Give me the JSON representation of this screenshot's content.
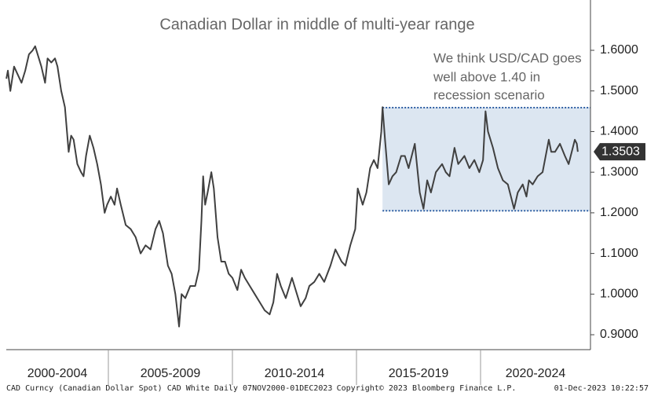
{
  "chart_data": {
    "type": "line",
    "title": "Canadian Dollar in middle of multi-year range",
    "annotation": [
      "We think USD/CAD goes",
      "well above 1.40 in",
      "recession scenario"
    ],
    "footer": {
      "left": "CAD Curncy (Canadian Dollar Spot) CAD White  Daily 07NOV2000-01DEC2023",
      "center": "Copyright© 2023 Bloomberg Finance L.P.",
      "right": "01-Dec-2023 10:22:57"
    },
    "x_periods": [
      {
        "label": "2000-2004",
        "start": 2000,
        "end": 2005
      },
      {
        "label": "2005-2009",
        "start": 2005,
        "end": 2010
      },
      {
        "label": "2010-2014",
        "start": 2010,
        "end": 2015
      },
      {
        "label": "2015-2019",
        "start": 2015,
        "end": 2020
      },
      {
        "label": "2020-2024",
        "start": 2020,
        "end": 2025
      }
    ],
    "xlim": [
      2000.886,
      2024.43
    ],
    "ylim": [
      0.8633,
      1.7238
    ],
    "yticks": [
      {
        "value": 0.9,
        "label": "0.9000"
      },
      {
        "value": 1.0,
        "label": "1.0000"
      },
      {
        "value": 1.1,
        "label": "1.1000"
      },
      {
        "value": 1.2,
        "label": "1.2000"
      },
      {
        "value": 1.3,
        "label": "1.3000"
      },
      {
        "value": 1.4,
        "label": "1.4000"
      },
      {
        "value": 1.5,
        "label": "1.5000"
      },
      {
        "value": 1.6,
        "label": "1.6000"
      }
    ],
    "range_band": {
      "start": 2016.05,
      "high": 1.459,
      "low": 1.205,
      "color": "#dce6f1",
      "border_color": "#2e5fa3"
    },
    "series": [
      {
        "name": "CAD Curncy",
        "color": "#404040",
        "x": [
          2000.89,
          2000.95,
          2001.05,
          2001.2,
          2001.35,
          2001.5,
          2001.65,
          2001.8,
          2001.95,
          2002.05,
          2002.15,
          2002.3,
          2002.45,
          2002.55,
          2002.7,
          2002.85,
          2002.95,
          2003.1,
          2003.25,
          2003.4,
          2003.5,
          2003.6,
          2003.75,
          2003.9,
          2004.0,
          2004.1,
          2004.25,
          2004.4,
          2004.55,
          2004.7,
          2004.85,
          2004.95,
          2005.1,
          2005.25,
          2005.35,
          2005.5,
          2005.7,
          2005.9,
          2006.1,
          2006.3,
          2006.5,
          2006.7,
          2006.9,
          2007.05,
          2007.2,
          2007.4,
          2007.55,
          2007.7,
          2007.85,
          2007.95,
          2008.1,
          2008.3,
          2008.5,
          2008.65,
          2008.75,
          2008.82,
          2008.9,
          2009.0,
          2009.15,
          2009.25,
          2009.4,
          2009.55,
          2009.7,
          2009.85,
          2010.0,
          2010.2,
          2010.35,
          2010.5,
          2010.7,
          2010.9,
          2011.1,
          2011.3,
          2011.5,
          2011.65,
          2011.8,
          2011.95,
          2012.15,
          2012.4,
          2012.6,
          2012.75,
          2012.95,
          2013.1,
          2013.3,
          2013.5,
          2013.7,
          2013.95,
          2014.15,
          2014.4,
          2014.55,
          2014.75,
          2014.95,
          2015.05,
          2015.25,
          2015.4,
          2015.55,
          2015.7,
          2015.85,
          2016.0,
          2016.05,
          2016.15,
          2016.3,
          2016.45,
          2016.6,
          2016.8,
          2016.95,
          2017.1,
          2017.35,
          2017.55,
          2017.7,
          2017.85,
          2018.0,
          2018.2,
          2018.45,
          2018.6,
          2018.75,
          2018.95,
          2019.1,
          2019.35,
          2019.55,
          2019.75,
          2019.95,
          2020.1,
          2020.2,
          2020.3,
          2020.5,
          2020.7,
          2020.9,
          2021.1,
          2021.35,
          2021.5,
          2021.7,
          2021.85,
          2021.95,
          2022.1,
          2022.3,
          2022.5,
          2022.75,
          2022.85,
          2023.0,
          2023.2,
          2023.4,
          2023.55,
          2023.8,
          2023.88,
          2023.92
        ],
        "values": [
          1.53,
          1.55,
          1.5,
          1.56,
          1.54,
          1.52,
          1.55,
          1.59,
          1.6,
          1.61,
          1.59,
          1.56,
          1.52,
          1.58,
          1.57,
          1.58,
          1.56,
          1.5,
          1.46,
          1.35,
          1.39,
          1.38,
          1.32,
          1.3,
          1.29,
          1.34,
          1.39,
          1.36,
          1.32,
          1.27,
          1.2,
          1.22,
          1.24,
          1.22,
          1.26,
          1.22,
          1.17,
          1.16,
          1.14,
          1.1,
          1.12,
          1.11,
          1.16,
          1.18,
          1.15,
          1.07,
          1.05,
          1.0,
          0.92,
          1.0,
          0.99,
          1.02,
          1.02,
          1.06,
          1.18,
          1.29,
          1.22,
          1.25,
          1.3,
          1.26,
          1.14,
          1.08,
          1.08,
          1.05,
          1.04,
          1.01,
          1.06,
          1.04,
          1.02,
          1.0,
          0.98,
          0.96,
          0.95,
          0.98,
          1.05,
          1.02,
          0.99,
          1.04,
          1.0,
          0.97,
          0.99,
          1.02,
          1.03,
          1.05,
          1.03,
          1.07,
          1.11,
          1.08,
          1.07,
          1.12,
          1.16,
          1.26,
          1.22,
          1.25,
          1.31,
          1.33,
          1.31,
          1.4,
          1.46,
          1.38,
          1.27,
          1.29,
          1.3,
          1.34,
          1.34,
          1.31,
          1.37,
          1.25,
          1.21,
          1.28,
          1.25,
          1.3,
          1.32,
          1.3,
          1.29,
          1.36,
          1.32,
          1.34,
          1.31,
          1.33,
          1.3,
          1.33,
          1.45,
          1.4,
          1.36,
          1.31,
          1.28,
          1.27,
          1.21,
          1.25,
          1.27,
          1.24,
          1.28,
          1.27,
          1.29,
          1.3,
          1.38,
          1.35,
          1.35,
          1.37,
          1.34,
          1.32,
          1.38,
          1.37,
          1.3503
        ]
      }
    ]
  }
}
